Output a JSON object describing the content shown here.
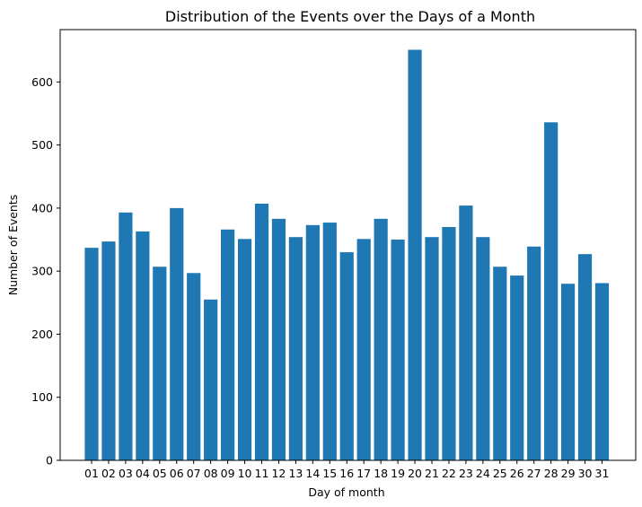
{
  "chart_data": {
    "type": "bar",
    "title": "Distribution of the Events over the Days of a Month",
    "xlabel": "Day of month",
    "ylabel": "Number of Events",
    "categories": [
      "01",
      "02",
      "03",
      "04",
      "05",
      "06",
      "07",
      "08",
      "09",
      "10",
      "11",
      "12",
      "13",
      "14",
      "15",
      "16",
      "17",
      "18",
      "19",
      "20",
      "21",
      "22",
      "23",
      "24",
      "25",
      "26",
      "27",
      "28",
      "29",
      "30",
      "31"
    ],
    "values": [
      337,
      347,
      393,
      363,
      307,
      400,
      297,
      255,
      366,
      351,
      407,
      383,
      354,
      373,
      377,
      330,
      351,
      383,
      350,
      651,
      354,
      370,
      404,
      354,
      307,
      293,
      339,
      536,
      280,
      327,
      281
    ],
    "ylim": [
      0,
      683
    ],
    "yticks": [
      0,
      100,
      200,
      300,
      400,
      500,
      600
    ],
    "grid": false,
    "bar_color": "#1f77b4"
  }
}
